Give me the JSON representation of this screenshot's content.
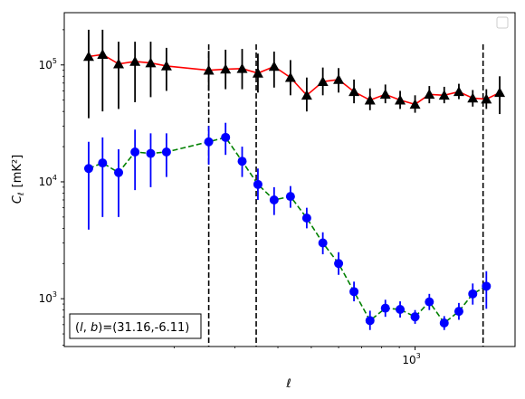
{
  "chart_data": {
    "type": "scatter",
    "xscale": "log",
    "yscale": "log",
    "xlim": [
      96,
      1950
    ],
    "ylim": [
      390,
      280000
    ],
    "xlabel": "ℓ",
    "ylabel_main": "C",
    "ylabel_sub": "ℓ",
    "ylabel_unit": "[mK²]",
    "x_ticks": [
      {
        "value": 1000,
        "base": "10",
        "exp": "3"
      }
    ],
    "y_ticks": [
      {
        "value": 1000,
        "base": "10",
        "exp": "3"
      },
      {
        "value": 10000,
        "base": "10",
        "exp": "4"
      },
      {
        "value": 100000,
        "base": "10",
        "exp": "5"
      }
    ],
    "annotation": "(l, b)=(31.16,-6.11)",
    "annotation_parts": {
      "l": "l",
      "b": "b",
      "rest": "=(31.16,-6.11)"
    },
    "vlines": [
      252,
      346,
      1575
    ],
    "legend": {
      "entries": [],
      "position": "upper right"
    },
    "series": [
      {
        "marker": "triangle",
        "marker_color": "#000000",
        "line_color": "#ff0000",
        "line_style": "solid",
        "errorbar_color": "#000000",
        "points": [
          {
            "x": 113,
            "y": 118000,
            "lo": 35000,
            "hi": 200000
          },
          {
            "x": 124,
            "y": 123000,
            "lo": 40000,
            "hi": 200000
          },
          {
            "x": 138,
            "y": 102000,
            "lo": 42000,
            "hi": 158000
          },
          {
            "x": 154,
            "y": 107000,
            "lo": 48000,
            "hi": 158000
          },
          {
            "x": 171,
            "y": 104000,
            "lo": 53000,
            "hi": 158000
          },
          {
            "x": 190,
            "y": 98000,
            "lo": 60000,
            "hi": 140000
          },
          {
            "x": 252,
            "y": 90000,
            "lo": 60000,
            "hi": 132000
          },
          {
            "x": 282,
            "y": 92000,
            "lo": 62000,
            "hi": 135000
          },
          {
            "x": 315,
            "y": 93000,
            "lo": 62000,
            "hi": 137000
          },
          {
            "x": 350,
            "y": 85000,
            "lo": 58000,
            "hi": 125000
          },
          {
            "x": 390,
            "y": 97000,
            "lo": 64000,
            "hi": 130000
          },
          {
            "x": 435,
            "y": 78000,
            "lo": 55000,
            "hi": 110000
          },
          {
            "x": 485,
            "y": 55000,
            "lo": 40000,
            "hi": 78000
          },
          {
            "x": 540,
            "y": 72000,
            "lo": 55000,
            "hi": 95000
          },
          {
            "x": 600,
            "y": 75000,
            "lo": 58000,
            "hi": 94000
          },
          {
            "x": 665,
            "y": 59000,
            "lo": 47000,
            "hi": 75000
          },
          {
            "x": 740,
            "y": 50000,
            "lo": 41000,
            "hi": 63000
          },
          {
            "x": 820,
            "y": 56000,
            "lo": 47000,
            "hi": 68000
          },
          {
            "x": 905,
            "y": 50000,
            "lo": 42000,
            "hi": 60000
          },
          {
            "x": 1000,
            "y": 46000,
            "lo": 39000,
            "hi": 55000
          },
          {
            "x": 1100,
            "y": 56000,
            "lo": 47000,
            "hi": 66000
          },
          {
            "x": 1215,
            "y": 55000,
            "lo": 47000,
            "hi": 65000
          },
          {
            "x": 1340,
            "y": 59000,
            "lo": 51000,
            "hi": 69000
          },
          {
            "x": 1470,
            "y": 52000,
            "lo": 44000,
            "hi": 61000
          },
          {
            "x": 1610,
            "y": 51000,
            "lo": 42000,
            "hi": 62000
          },
          {
            "x": 1760,
            "y": 58000,
            "lo": 38000,
            "hi": 80000
          }
        ]
      },
      {
        "marker": "circle",
        "marker_color": "#0000ff",
        "line_color": "#008000",
        "line_style": "dashed",
        "errorbar_color": "#0000ff",
        "points": [
          {
            "x": 113,
            "y": 13000,
            "lo": 3900,
            "hi": 22000
          },
          {
            "x": 124,
            "y": 14500,
            "lo": 5000,
            "hi": 24000
          },
          {
            "x": 138,
            "y": 12000,
            "lo": 5000,
            "hi": 19000
          },
          {
            "x": 154,
            "y": 18000,
            "lo": 8500,
            "hi": 28000
          },
          {
            "x": 171,
            "y": 17500,
            "lo": 9000,
            "hi": 26000
          },
          {
            "x": 190,
            "y": 18000,
            "lo": 11000,
            "hi": 26000
          },
          {
            "x": 252,
            "y": 22000,
            "lo": 14000,
            "hi": 30000
          },
          {
            "x": 282,
            "y": 24000,
            "lo": 17000,
            "hi": 32000
          },
          {
            "x": 315,
            "y": 15000,
            "lo": 11000,
            "hi": 20000
          },
          {
            "x": 350,
            "y": 9500,
            "lo": 7000,
            "hi": 13000
          },
          {
            "x": 390,
            "y": 7000,
            "lo": 5200,
            "hi": 9000
          },
          {
            "x": 435,
            "y": 7500,
            "lo": 6000,
            "hi": 9200
          },
          {
            "x": 485,
            "y": 4900,
            "lo": 4000,
            "hi": 6000
          },
          {
            "x": 540,
            "y": 3000,
            "lo": 2400,
            "hi": 3700
          },
          {
            "x": 600,
            "y": 2000,
            "lo": 1600,
            "hi": 2500
          },
          {
            "x": 665,
            "y": 1150,
            "lo": 950,
            "hi": 1400
          },
          {
            "x": 740,
            "y": 650,
            "lo": 540,
            "hi": 790
          },
          {
            "x": 820,
            "y": 830,
            "lo": 700,
            "hi": 980
          },
          {
            "x": 905,
            "y": 810,
            "lo": 690,
            "hi": 950
          },
          {
            "x": 1000,
            "y": 700,
            "lo": 610,
            "hi": 800
          },
          {
            "x": 1100,
            "y": 940,
            "lo": 800,
            "hi": 1100
          },
          {
            "x": 1215,
            "y": 620,
            "lo": 540,
            "hi": 710
          },
          {
            "x": 1340,
            "y": 780,
            "lo": 660,
            "hi": 920
          },
          {
            "x": 1470,
            "y": 1100,
            "lo": 890,
            "hi": 1350
          },
          {
            "x": 1610,
            "y": 1280,
            "lo": 820,
            "hi": 1720
          }
        ]
      }
    ]
  }
}
